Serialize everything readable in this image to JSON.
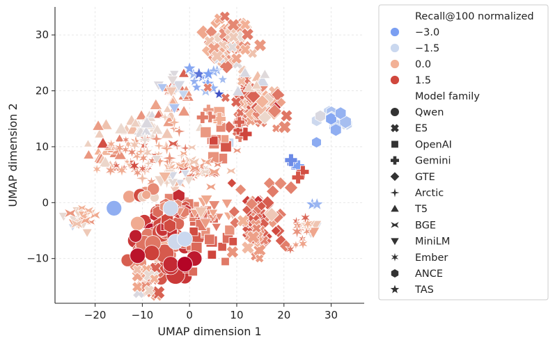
{
  "chart_data": {
    "type": "scatter",
    "title": "",
    "xlabel": "UMAP dimension 1",
    "ylabel": "UMAP dimension 2",
    "xlim": [
      -28.5,
      37
    ],
    "ylim": [
      -18,
      35
    ],
    "xticks": [
      -20,
      -10,
      0,
      10,
      20,
      30
    ],
    "yticks": [
      -10,
      0,
      10,
      20,
      30
    ],
    "xtick_labels": [
      "−20",
      "−10",
      "0",
      "10",
      "20",
      "30"
    ],
    "ytick_labels": [
      "−10",
      "0",
      "10",
      "20",
      "30"
    ],
    "grid": true,
    "legend_position": "outside-right",
    "color_legend": {
      "title": "Recall@100 normalized",
      "entries": [
        {
          "label": "−3.0",
          "value": -3.0,
          "color": "#7b9ff2"
        },
        {
          "label": "−1.5",
          "value": -1.5,
          "color": "#cad8ef"
        },
        {
          "label": "0.0",
          "value": 0.0,
          "color": "#f2b196"
        },
        {
          "label": "1.5",
          "value": 1.5,
          "color": "#d0473d"
        }
      ]
    },
    "marker_legend": {
      "title": "Model family",
      "entries": [
        {
          "label": "Qwen",
          "marker": "circle"
        },
        {
          "label": "E5",
          "marker": "x"
        },
        {
          "label": "OpenAI",
          "marker": "square"
        },
        {
          "label": "Gemini",
          "marker": "plus"
        },
        {
          "label": "GTE",
          "marker": "diamond"
        },
        {
          "label": "Arctic",
          "marker": "star4"
        },
        {
          "label": "T5",
          "marker": "triangle-up"
        },
        {
          "label": "BGE",
          "marker": "bowtie"
        },
        {
          "label": "MiniLM",
          "marker": "triangle-down"
        },
        {
          "label": "Ember",
          "marker": "asterisk"
        },
        {
          "label": "ANCE",
          "marker": "hexagon"
        },
        {
          "label": "TAS",
          "marker": "star"
        }
      ]
    },
    "clusters": [
      {
        "family": "GTE",
        "cx": 8,
        "cy": 29,
        "sx": 3,
        "sy": 3,
        "n": 40,
        "value": 0.2,
        "size": 1
      },
      {
        "family": "E5",
        "cx": 9,
        "cy": 28,
        "sx": 3,
        "sy": 3,
        "n": 30,
        "value": -0.1,
        "size": 1
      },
      {
        "family": "TAS",
        "cx": 3,
        "cy": 22,
        "sx": 2.5,
        "sy": 1.5,
        "n": 12,
        "value": -2.6,
        "size": 1
      },
      {
        "family": "E5",
        "cx": 13,
        "cy": 18,
        "sx": 3.5,
        "sy": 3,
        "n": 45,
        "value": 0.6,
        "size": 1
      },
      {
        "family": "GTE",
        "cx": 16,
        "cy": 17,
        "sx": 3,
        "sy": 3,
        "n": 30,
        "value": 0.4,
        "size": 1
      },
      {
        "family": "T5",
        "cx": -3,
        "cy": 19,
        "sx": 2.5,
        "sy": 2.5,
        "n": 18,
        "value": 0.4,
        "size": 1
      },
      {
        "family": "MiniLM",
        "cx": -4,
        "cy": 19,
        "sx": 2,
        "sy": 2,
        "n": 10,
        "value": -1.2,
        "size": 1
      },
      {
        "family": "T5",
        "cx": 14,
        "cy": 22,
        "sx": 2.5,
        "sy": 1.5,
        "n": 8,
        "value": -1.0,
        "size": 1
      },
      {
        "family": "T5",
        "cx": -10,
        "cy": 14,
        "sx": 5,
        "sy": 2,
        "n": 25,
        "value": -0.4,
        "size": 1
      },
      {
        "family": "T5",
        "cx": -18,
        "cy": 8,
        "sx": 3,
        "sy": 3,
        "n": 20,
        "value": 0.0,
        "size": 1
      },
      {
        "family": "Ember",
        "cx": -12,
        "cy": 8,
        "sx": 4,
        "sy": 3,
        "n": 35,
        "value": 0.3,
        "size": 1
      },
      {
        "family": "Arctic",
        "cx": -5,
        "cy": 9,
        "sx": 4,
        "sy": 3,
        "n": 25,
        "value": 0.1,
        "size": 1
      },
      {
        "family": "OpenAI",
        "cx": 5,
        "cy": 12,
        "sx": 3,
        "sy": 3,
        "n": 14,
        "value": 0.3,
        "size": 1
      },
      {
        "family": "BGE",
        "cx": 1,
        "cy": 6,
        "sx": 5,
        "sy": 3,
        "n": 35,
        "value": 0.2,
        "size": 1
      },
      {
        "family": "MiniLM",
        "cx": -4,
        "cy": 4,
        "sx": 3,
        "sy": 2,
        "n": 12,
        "value": -0.7,
        "size": 1
      },
      {
        "family": "Gemini",
        "cx": 11,
        "cy": 13,
        "sx": 1.5,
        "sy": 1.5,
        "n": 6,
        "value": 1.2,
        "size": 1
      },
      {
        "family": "Gemini",
        "cx": 4,
        "cy": 15,
        "sx": 2.5,
        "sy": 1,
        "n": 4,
        "value": 0.6,
        "size": 1
      },
      {
        "family": "Qwen",
        "cx": -8,
        "cy": 2,
        "sx": 3,
        "sy": 1,
        "n": 8,
        "value": 0.2,
        "size": 1
      },
      {
        "family": "MiniLM",
        "cx": -24,
        "cy": -3,
        "sx": 3,
        "sy": 1.5,
        "n": 12,
        "value": -0.6,
        "size": 1
      },
      {
        "family": "Qwen",
        "cx": -6,
        "cy": -7,
        "sx": 5,
        "sy": 3,
        "n": 55,
        "value": 1.2,
        "size": 2
      },
      {
        "family": "OpenAI",
        "cx": 2,
        "cy": -5,
        "sx": 5,
        "sy": 4,
        "n": 35,
        "value": 1.0,
        "size": 1
      },
      {
        "family": "ANCE",
        "cx": -3,
        "cy": -2,
        "sx": 3,
        "sy": 2,
        "n": 18,
        "value": 1.4,
        "size": 1
      },
      {
        "family": "MiniLM",
        "cx": 5,
        "cy": -2,
        "sx": 4,
        "sy": 1.5,
        "n": 16,
        "value": 0.1,
        "size": 1
      },
      {
        "family": "GTE",
        "cx": 15,
        "cy": -3,
        "sx": 3.5,
        "sy": 4,
        "n": 60,
        "value": 1.0,
        "size": 1
      },
      {
        "family": "E5",
        "cx": 14,
        "cy": -7,
        "sx": 2.5,
        "sy": 3,
        "n": 20,
        "value": 0.5,
        "size": 1
      },
      {
        "family": "E5",
        "cx": -9,
        "cy": -14,
        "sx": 2,
        "sy": 2,
        "n": 22,
        "value": 0.2,
        "size": 1
      },
      {
        "family": "ANCE",
        "cx": 31,
        "cy": 14,
        "sx": 2.5,
        "sy": 2,
        "n": 14,
        "value": -1.9,
        "size": 1
      },
      {
        "family": "MiniLM",
        "cx": 26,
        "cy": -4,
        "sx": 1,
        "sy": 1.5,
        "n": 5,
        "value": -0.6,
        "size": 1
      },
      {
        "family": "Ember",
        "cx": 24,
        "cy": -6,
        "sx": 1.2,
        "sy": 3,
        "n": 14,
        "value": 0.4,
        "size": 1
      },
      {
        "family": "BGE",
        "cx": -22,
        "cy": -2,
        "sx": 2,
        "sy": 1.5,
        "n": 8,
        "value": 0.0,
        "size": 1
      }
    ],
    "highlight_points": [
      {
        "family": "Gemini",
        "x": 22,
        "y": 7,
        "value": -3.2
      },
      {
        "family": "Gemini",
        "x": 23,
        "y": 6.5,
        "value": -3.0
      },
      {
        "family": "Gemini",
        "x": 21.5,
        "y": 7.6,
        "value": -3.1
      },
      {
        "family": "Gemini",
        "x": 24,
        "y": 5.5,
        "value": 1.4
      },
      {
        "family": "Gemini",
        "x": 23,
        "y": 4.5,
        "value": 1.3
      },
      {
        "family": "ANCE",
        "x": 30,
        "y": 15,
        "value": -2.8
      },
      {
        "family": "ANCE",
        "x": 32,
        "y": 16,
        "value": -2.5
      },
      {
        "family": "ANCE",
        "x": 31,
        "y": 13,
        "value": -2.6
      },
      {
        "family": "Qwen",
        "x": -16,
        "y": -1,
        "value": -2.6
      },
      {
        "family": "Qwen",
        "x": -4,
        "y": -1,
        "value": -1.4
      },
      {
        "family": "Qwen",
        "x": -3,
        "y": -7,
        "value": -1.4
      },
      {
        "family": "Qwen",
        "x": -1,
        "y": -6.5,
        "value": -1.5
      },
      {
        "family": "Qwen",
        "x": -8,
        "y": -9,
        "value": 1.6
      },
      {
        "family": "Qwen",
        "x": -11,
        "y": -9.5,
        "value": 2.2
      },
      {
        "family": "Qwen",
        "x": -4,
        "y": -11,
        "value": 1.9
      },
      {
        "family": "Qwen",
        "x": 1,
        "y": -10,
        "value": 2.1
      },
      {
        "family": "Qwen",
        "x": -1,
        "y": -11,
        "value": 2.4
      },
      {
        "family": "TAS",
        "x": 2,
        "y": 23,
        "value": -3.2
      },
      {
        "family": "TAS",
        "x": 4,
        "y": 23,
        "value": -3.0
      },
      {
        "family": "TAS",
        "x": 0,
        "y": 24,
        "value": -2.8
      },
      {
        "family": "TAS",
        "x": 26,
        "y": -0.3,
        "value": -2.6
      },
      {
        "family": "TAS",
        "x": 27,
        "y": -0.3,
        "value": -2.4
      }
    ]
  }
}
